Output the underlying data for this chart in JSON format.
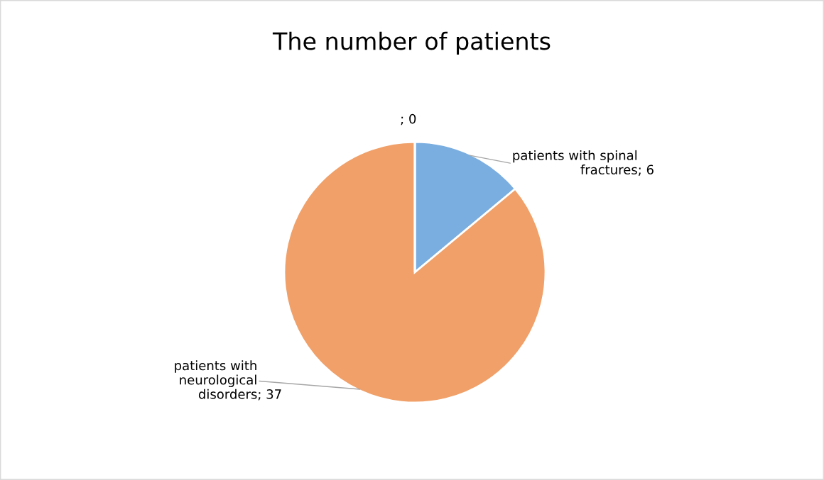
{
  "chart_data": {
    "type": "pie",
    "title": "The number of patients",
    "categories": [
      "patients with spinal fractures",
      "patients with neurological disorders",
      null
    ],
    "values": [
      6,
      37,
      0
    ],
    "colors": [
      "#7aaee0",
      "#f0a068",
      "#a5a5a5"
    ],
    "value_labels": [
      "; 6",
      "; 37",
      "; 0"
    ]
  }
}
